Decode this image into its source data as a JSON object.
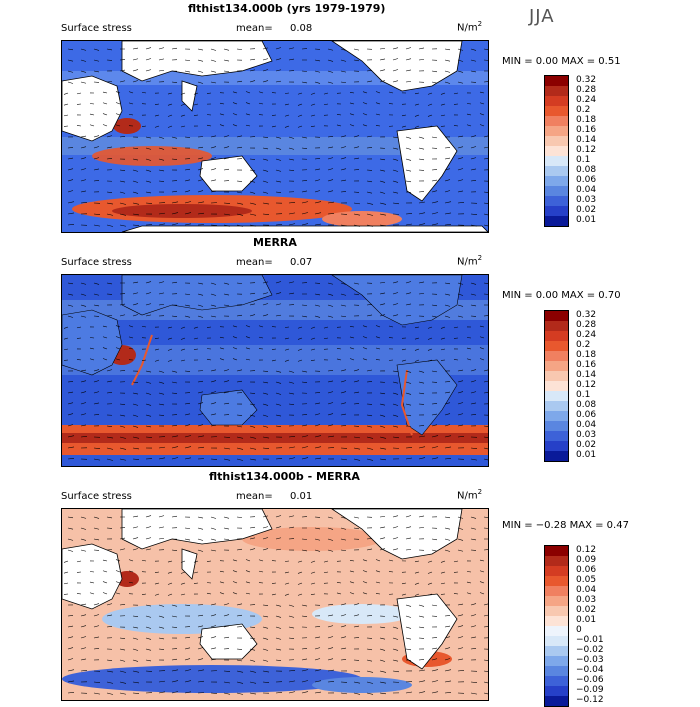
{
  "season": "JJA",
  "panels": [
    {
      "title": "flthist134.000b (yrs 1979-1979)",
      "variable": "Surface stress",
      "mean_label": "mean=",
      "mean": "0.08",
      "unit": "N/m",
      "unit_exp": "2",
      "minmax": "MIN =   0.00 MAX =   0.51",
      "levels": [
        "0.32",
        "0.28",
        "0.24",
        "0.2",
        "0.18",
        "0.16",
        "0.14",
        "0.12",
        "0.1",
        "0.08",
        "0.06",
        "0.04",
        "0.03",
        "0.02",
        "0.01"
      ],
      "colors": [
        "#8b0000",
        "#b22a1a",
        "#d43c22",
        "#e8582e",
        "#f08060",
        "#f5a585",
        "#f8c8b0",
        "#fde3d6",
        "#d8e8f8",
        "#aac9f0",
        "#7ea8ea",
        "#5a86e0",
        "#3d62d8",
        "#2640c8",
        "#0a1a99"
      ],
      "background": "#2f5fe0"
    },
    {
      "title": "MERRA",
      "variable": "Surface stress",
      "mean_label": "mean=",
      "mean": "0.07",
      "unit": "N/m",
      "unit_exp": "2",
      "minmax": "MIN =   0.00 MAX =   0.70",
      "levels": [
        "0.32",
        "0.28",
        "0.24",
        "0.2",
        "0.18",
        "0.16",
        "0.14",
        "0.12",
        "0.1",
        "0.08",
        "0.06",
        "0.04",
        "0.03",
        "0.02",
        "0.01"
      ],
      "colors": [
        "#8b0000",
        "#b22a1a",
        "#d43c22",
        "#e8582e",
        "#f08060",
        "#f5a585",
        "#f8c8b0",
        "#fde3d6",
        "#d8e8f8",
        "#aac9f0",
        "#7ea8ea",
        "#5a86e0",
        "#3d62d8",
        "#2640c8",
        "#0a1a99"
      ],
      "background": "#2850d8"
    },
    {
      "title": "flthist134.000b - MERRA",
      "variable": "Surface stress",
      "mean_label": "mean=",
      "mean": "0.01",
      "unit": "N/m",
      "unit_exp": "2",
      "minmax": "MIN =  −0.28 MAX =   0.47",
      "levels": [
        "0.12",
        "0.09",
        "0.06",
        "0.05",
        "0.04",
        "0.03",
        "0.02",
        "0.01",
        "0",
        "−0.01",
        "−0.02",
        "−0.03",
        "−0.04",
        "−0.06",
        "−0.09",
        "−0.12"
      ],
      "colors": [
        "#8b0000",
        "#b22a1a",
        "#d43c22",
        "#e8582e",
        "#f08060",
        "#f5a585",
        "#f8c8b0",
        "#fde3d6",
        "#eef4fc",
        "#d8e8f8",
        "#aac9f0",
        "#7ea8ea",
        "#5a86e0",
        "#3d62d8",
        "#2640c8",
        "#0a1a99"
      ],
      "background": "#f4b49a"
    }
  ]
}
